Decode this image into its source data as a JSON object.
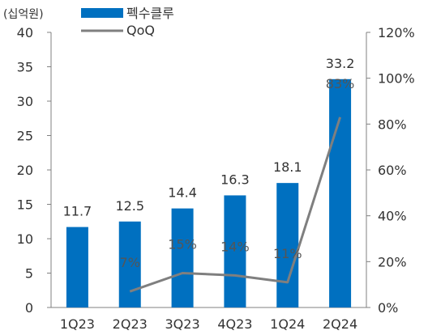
{
  "chart_data": {
    "type": "bar",
    "unit_label": "(십억원)",
    "categories": [
      "1Q23",
      "2Q23",
      "3Q23",
      "4Q23",
      "1Q24",
      "2Q24"
    ],
    "series": [
      {
        "name": "펙수클루",
        "type": "bar",
        "axis": "left",
        "values": [
          11.7,
          12.5,
          14.4,
          16.3,
          18.1,
          33.2
        ],
        "labels": [
          "11.7",
          "12.5",
          "14.4",
          "16.3",
          "18.1",
          "33.2"
        ],
        "color": "#0070C0"
      },
      {
        "name": "QoQ",
        "type": "line",
        "axis": "right",
        "values": [
          null,
          7,
          15,
          14,
          11,
          83
        ],
        "labels": [
          "",
          "7%",
          "15%",
          "14%",
          "11%",
          "83%"
        ],
        "color": "#7F7F7F"
      }
    ],
    "y_left": {
      "min": 0,
      "max": 40,
      "ticks": [
        "0",
        "5",
        "10",
        "15",
        "20",
        "25",
        "30",
        "35",
        "40"
      ]
    },
    "y_right": {
      "min": 0,
      "max": 120,
      "ticks": [
        "0%",
        "20%",
        "40%",
        "60%",
        "80%",
        "100%",
        "120%"
      ]
    },
    "legend": "top-left",
    "grid": false
  }
}
